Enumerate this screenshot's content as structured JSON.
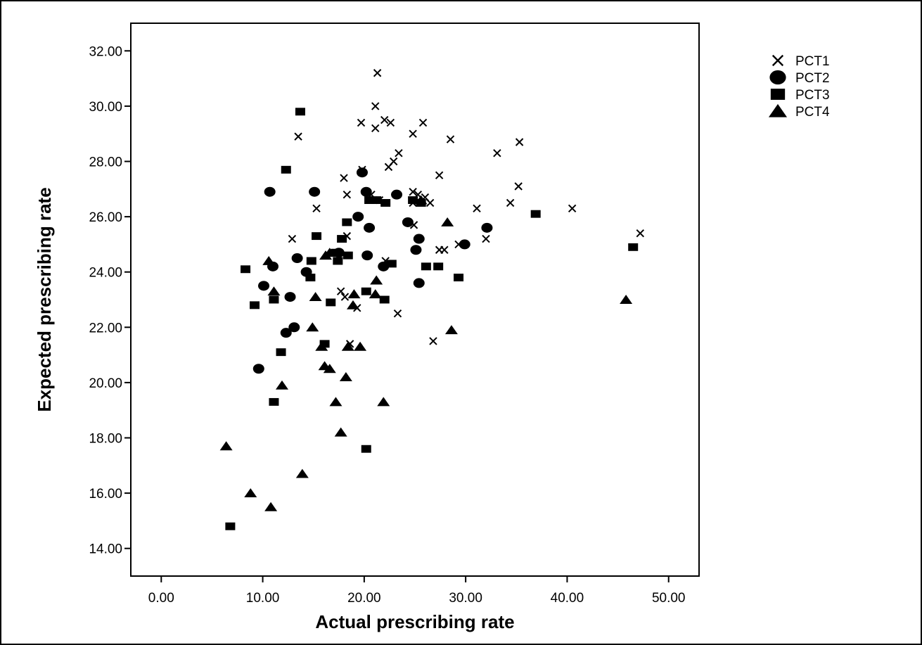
{
  "chart_data": {
    "type": "scatter",
    "title": "",
    "xlabel": "Actual prescribing rate",
    "ylabel": "Expected prescribing rate",
    "xlim": [
      -3,
      53
    ],
    "ylim": [
      13,
      33
    ],
    "xticks": [
      0,
      10,
      20,
      30,
      40,
      50
    ],
    "xtick_labels": [
      "0.00",
      "10.00",
      "20.00",
      "30.00",
      "40.00",
      "50.00"
    ],
    "yticks": [
      14,
      16,
      18,
      20,
      22,
      24,
      26,
      28,
      30,
      32
    ],
    "ytick_labels": [
      "14.00",
      "16.00",
      "18.00",
      "20.00",
      "22.00",
      "24.00",
      "26.00",
      "28.00",
      "30.00",
      "32.00"
    ],
    "grid": false,
    "legend_position": "top-right, outside plot",
    "series": [
      {
        "name": "PCT1",
        "marker": "x",
        "points": [
          [
            21.3,
            31.2
          ],
          [
            21.1,
            30.0
          ],
          [
            13.5,
            28.9
          ],
          [
            19.7,
            29.4
          ],
          [
            21.1,
            29.2
          ],
          [
            22.0,
            29.5
          ],
          [
            22.6,
            29.4
          ],
          [
            25.8,
            29.4
          ],
          [
            24.8,
            29.0
          ],
          [
            28.5,
            28.8
          ],
          [
            35.3,
            28.7
          ],
          [
            33.1,
            28.3
          ],
          [
            23.4,
            28.3
          ],
          [
            22.9,
            28.0
          ],
          [
            22.4,
            27.8
          ],
          [
            19.8,
            27.7
          ],
          [
            18.0,
            27.4
          ],
          [
            27.4,
            27.5
          ],
          [
            35.2,
            27.1
          ],
          [
            24.8,
            26.9
          ],
          [
            25.3,
            26.8
          ],
          [
            26.0,
            26.7
          ],
          [
            20.7,
            26.8
          ],
          [
            18.3,
            26.8
          ],
          [
            21.5,
            26.6
          ],
          [
            24.8,
            26.5
          ],
          [
            26.5,
            26.5
          ],
          [
            15.3,
            26.3
          ],
          [
            34.4,
            26.5
          ],
          [
            31.1,
            26.3
          ],
          [
            40.5,
            26.3
          ],
          [
            47.2,
            25.4
          ],
          [
            32.0,
            25.2
          ],
          [
            24.9,
            25.7
          ],
          [
            18.3,
            25.3
          ],
          [
            12.9,
            25.2
          ],
          [
            22.1,
            24.4
          ],
          [
            27.9,
            24.8
          ],
          [
            27.4,
            24.8
          ],
          [
            29.3,
            25.0
          ],
          [
            17.7,
            23.3
          ],
          [
            18.1,
            23.1
          ],
          [
            19.3,
            22.7
          ],
          [
            23.3,
            22.5
          ],
          [
            26.8,
            21.5
          ],
          [
            18.6,
            21.4
          ]
        ]
      },
      {
        "name": "PCT2",
        "marker": "circle",
        "points": [
          [
            10.7,
            26.9
          ],
          [
            15.1,
            26.9
          ],
          [
            19.8,
            27.6
          ],
          [
            20.2,
            26.9
          ],
          [
            23.2,
            26.8
          ],
          [
            19.4,
            26.0
          ],
          [
            20.5,
            25.6
          ],
          [
            24.3,
            25.8
          ],
          [
            32.1,
            25.6
          ],
          [
            25.4,
            25.2
          ],
          [
            29.9,
            25.0
          ],
          [
            25.1,
            24.8
          ],
          [
            20.3,
            24.6
          ],
          [
            13.4,
            24.5
          ],
          [
            17.5,
            24.7
          ],
          [
            11.0,
            24.2
          ],
          [
            14.3,
            24.0
          ],
          [
            21.9,
            24.2
          ],
          [
            10.1,
            23.5
          ],
          [
            25.4,
            23.6
          ],
          [
            12.7,
            23.1
          ],
          [
            13.1,
            22.0
          ],
          [
            12.3,
            21.8
          ],
          [
            9.6,
            20.5
          ]
        ]
      },
      {
        "name": "PCT3",
        "marker": "square",
        "points": [
          [
            13.7,
            29.8
          ],
          [
            12.3,
            27.7
          ],
          [
            20.5,
            26.6
          ],
          [
            21.2,
            26.6
          ],
          [
            22.1,
            26.5
          ],
          [
            24.8,
            26.6
          ],
          [
            25.6,
            26.5
          ],
          [
            36.9,
            26.1
          ],
          [
            18.3,
            25.8
          ],
          [
            15.3,
            25.3
          ],
          [
            17.8,
            25.2
          ],
          [
            46.5,
            24.9
          ],
          [
            17.2,
            24.7
          ],
          [
            18.4,
            24.6
          ],
          [
            14.8,
            24.4
          ],
          [
            17.4,
            24.4
          ],
          [
            22.7,
            24.3
          ],
          [
            26.1,
            24.2
          ],
          [
            27.3,
            24.2
          ],
          [
            8.3,
            24.1
          ],
          [
            14.7,
            23.8
          ],
          [
            29.3,
            23.8
          ],
          [
            20.2,
            23.3
          ],
          [
            11.1,
            23.0
          ],
          [
            16.7,
            22.9
          ],
          [
            22.0,
            23.0
          ],
          [
            9.2,
            22.8
          ],
          [
            16.1,
            21.4
          ],
          [
            11.8,
            21.1
          ],
          [
            11.1,
            19.3
          ],
          [
            20.2,
            17.6
          ],
          [
            6.8,
            14.8
          ]
        ]
      },
      {
        "name": "PCT4",
        "marker": "triangle",
        "points": [
          [
            28.2,
            25.8
          ],
          [
            16.6,
            24.7
          ],
          [
            16.2,
            24.6
          ],
          [
            10.6,
            24.4
          ],
          [
            25.6,
            26.6
          ],
          [
            21.2,
            23.7
          ],
          [
            11.1,
            23.3
          ],
          [
            15.2,
            23.1
          ],
          [
            19.0,
            23.2
          ],
          [
            21.1,
            23.2
          ],
          [
            45.8,
            23.0
          ],
          [
            18.9,
            22.8
          ],
          [
            14.9,
            22.0
          ],
          [
            28.6,
            21.9
          ],
          [
            15.8,
            21.3
          ],
          [
            18.4,
            21.3
          ],
          [
            19.6,
            21.3
          ],
          [
            16.1,
            20.6
          ],
          [
            16.6,
            20.5
          ],
          [
            18.2,
            20.2
          ],
          [
            11.9,
            19.9
          ],
          [
            17.2,
            19.3
          ],
          [
            21.9,
            19.3
          ],
          [
            17.7,
            18.2
          ],
          [
            6.4,
            17.7
          ],
          [
            13.9,
            16.7
          ],
          [
            8.8,
            16.0
          ],
          [
            10.8,
            15.5
          ]
        ]
      }
    ]
  }
}
